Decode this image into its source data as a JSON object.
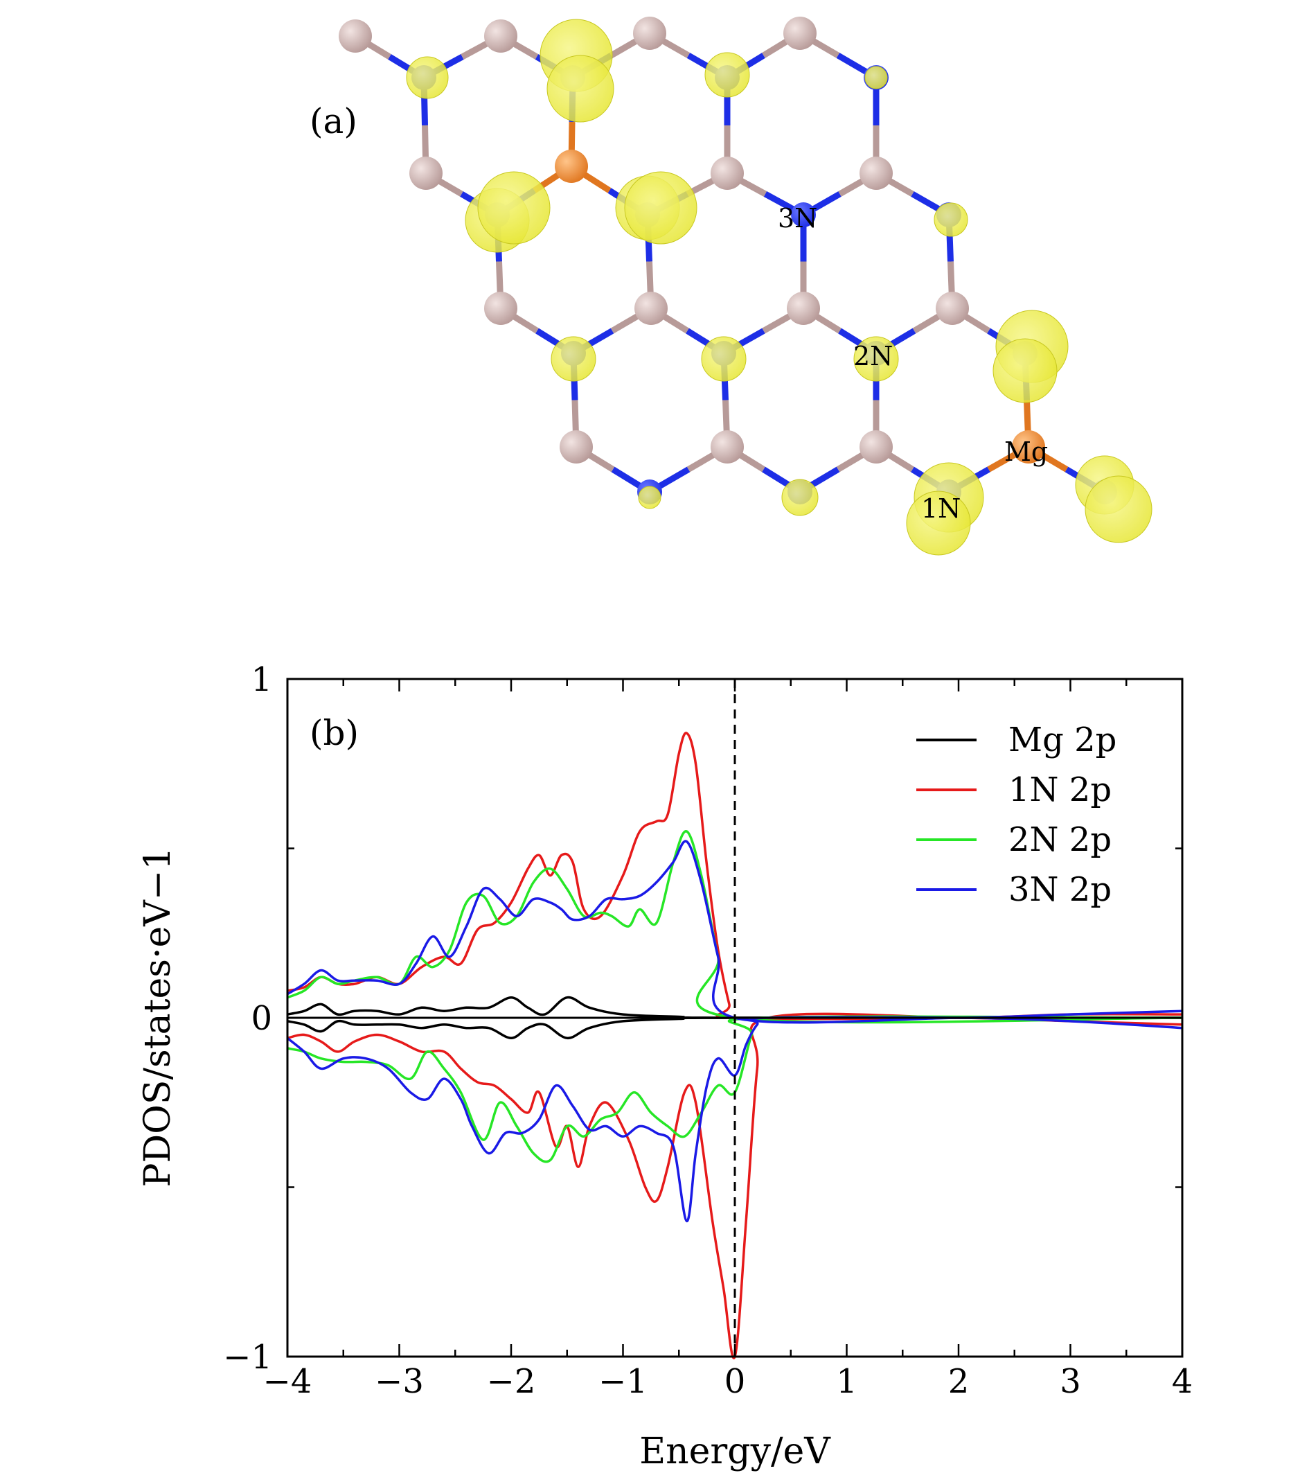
{
  "panel_a": {
    "label": "(a)",
    "atom_labels": [
      "3N",
      "2N",
      "1N",
      "Mg"
    ],
    "colors": {
      "carbon": "#b79a98",
      "nitrogen": "#1d2ee6",
      "magnesium": "#e0761f",
      "isosurface": "#e6e632"
    }
  },
  "chart_data": {
    "type": "line",
    "panel_label": "(b)",
    "title": "",
    "xlabel": "Energy/eV",
    "ylabel": "PDOS/states·eV−1",
    "xlim": [
      -4,
      4
    ],
    "ylim": [
      -1,
      1
    ],
    "xticks": [
      -4,
      -3,
      -2,
      -1,
      0,
      1,
      2,
      3,
      4
    ],
    "xtick_labels": [
      "−4",
      "−3",
      "−2",
      "−1",
      "0",
      "1",
      "2",
      "3",
      "4"
    ],
    "yticks": [
      -1,
      0,
      1
    ],
    "ytick_labels": [
      "−1",
      "0",
      "1"
    ],
    "fermi_level": 0,
    "grid": false,
    "legend_position": "top-right",
    "series": [
      {
        "name": "Mg 2p",
        "color": "#000000",
        "spin_up": [
          [
            -4,
            0.01
          ],
          [
            -3.85,
            0.02
          ],
          [
            -3.7,
            0.04
          ],
          [
            -3.55,
            0.01
          ],
          [
            -3.4,
            0.02
          ],
          [
            -3.2,
            0.02
          ],
          [
            -3.0,
            0.01
          ],
          [
            -2.8,
            0.03
          ],
          [
            -2.6,
            0.02
          ],
          [
            -2.4,
            0.03
          ],
          [
            -2.2,
            0.03
          ],
          [
            -2.0,
            0.06
          ],
          [
            -1.85,
            0.03
          ],
          [
            -1.7,
            0.01
          ],
          [
            -1.5,
            0.06
          ],
          [
            -1.3,
            0.03
          ],
          [
            -1.0,
            0.01
          ],
          [
            -0.5,
            0.003
          ],
          [
            0,
            0
          ],
          [
            4,
            0
          ]
        ],
        "spin_down": [
          [
            -4,
            -0.01
          ],
          [
            -3.85,
            -0.02
          ],
          [
            -3.7,
            -0.04
          ],
          [
            -3.55,
            -0.01
          ],
          [
            -3.4,
            -0.02
          ],
          [
            -3.2,
            -0.02
          ],
          [
            -3.0,
            -0.02
          ],
          [
            -2.8,
            -0.03
          ],
          [
            -2.6,
            -0.02
          ],
          [
            -2.4,
            -0.03
          ],
          [
            -2.2,
            -0.03
          ],
          [
            -2.0,
            -0.06
          ],
          [
            -1.85,
            -0.03
          ],
          [
            -1.7,
            -0.02
          ],
          [
            -1.5,
            -0.06
          ],
          [
            -1.3,
            -0.03
          ],
          [
            -1.0,
            -0.01
          ],
          [
            -0.5,
            -0.003
          ],
          [
            0,
            0
          ],
          [
            4,
            0
          ]
        ]
      },
      {
        "name": "1N 2p",
        "color": "#e61a1a",
        "spin_up": [
          [
            -4,
            0.08
          ],
          [
            -3.85,
            0.09
          ],
          [
            -3.7,
            0.12
          ],
          [
            -3.55,
            0.1
          ],
          [
            -3.4,
            0.1
          ],
          [
            -3.2,
            0.12
          ],
          [
            -3.0,
            0.1
          ],
          [
            -2.8,
            0.15
          ],
          [
            -2.6,
            0.18
          ],
          [
            -2.45,
            0.16
          ],
          [
            -2.3,
            0.26
          ],
          [
            -2.15,
            0.28
          ],
          [
            -2.0,
            0.34
          ],
          [
            -1.85,
            0.44
          ],
          [
            -1.75,
            0.48
          ],
          [
            -1.65,
            0.42
          ],
          [
            -1.55,
            0.48
          ],
          [
            -1.45,
            0.46
          ],
          [
            -1.35,
            0.32
          ],
          [
            -1.2,
            0.3
          ],
          [
            -1.0,
            0.42
          ],
          [
            -0.85,
            0.55
          ],
          [
            -0.7,
            0.58
          ],
          [
            -0.6,
            0.6
          ],
          [
            -0.5,
            0.78
          ],
          [
            -0.43,
            0.84
          ],
          [
            -0.35,
            0.75
          ],
          [
            -0.25,
            0.45
          ],
          [
            -0.15,
            0.2
          ],
          [
            -0.05,
            0.04
          ],
          [
            0,
            0
          ],
          [
            2,
            0
          ],
          [
            3,
            0.01
          ],
          [
            4,
            0.01
          ]
        ],
        "spin_down": [
          [
            -4,
            -0.06
          ],
          [
            -3.85,
            -0.05
          ],
          [
            -3.7,
            -0.07
          ],
          [
            -3.55,
            -0.1
          ],
          [
            -3.4,
            -0.07
          ],
          [
            -3.2,
            -0.05
          ],
          [
            -3.0,
            -0.07
          ],
          [
            -2.8,
            -0.1
          ],
          [
            -2.6,
            -0.1
          ],
          [
            -2.45,
            -0.15
          ],
          [
            -2.3,
            -0.19
          ],
          [
            -2.15,
            -0.2
          ],
          [
            -2.0,
            -0.24
          ],
          [
            -1.85,
            -0.28
          ],
          [
            -1.75,
            -0.22
          ],
          [
            -1.6,
            -0.38
          ],
          [
            -1.5,
            -0.32
          ],
          [
            -1.4,
            -0.44
          ],
          [
            -1.3,
            -0.32
          ],
          [
            -1.15,
            -0.25
          ],
          [
            -0.95,
            -0.36
          ],
          [
            -0.8,
            -0.5
          ],
          [
            -0.7,
            -0.54
          ],
          [
            -0.6,
            -0.44
          ],
          [
            -0.45,
            -0.22
          ],
          [
            -0.35,
            -0.25
          ],
          [
            -0.2,
            -0.6
          ],
          [
            -0.1,
            -0.8
          ],
          [
            0,
            -1.0
          ],
          [
            0.1,
            -0.6
          ],
          [
            0.2,
            -0.15
          ],
          [
            0.3,
            0
          ],
          [
            2,
            0
          ],
          [
            3,
            -0.01
          ],
          [
            4,
            -0.02
          ]
        ]
      },
      {
        "name": "2N 2p",
        "color": "#26e626",
        "spin_up": [
          [
            -4,
            0.06
          ],
          [
            -3.85,
            0.08
          ],
          [
            -3.7,
            0.12
          ],
          [
            -3.55,
            0.1
          ],
          [
            -3.4,
            0.11
          ],
          [
            -3.2,
            0.12
          ],
          [
            -3.0,
            0.1
          ],
          [
            -2.85,
            0.18
          ],
          [
            -2.7,
            0.15
          ],
          [
            -2.55,
            0.2
          ],
          [
            -2.4,
            0.34
          ],
          [
            -2.25,
            0.36
          ],
          [
            -2.1,
            0.28
          ],
          [
            -1.95,
            0.3
          ],
          [
            -1.8,
            0.4
          ],
          [
            -1.65,
            0.44
          ],
          [
            -1.5,
            0.38
          ],
          [
            -1.35,
            0.3
          ],
          [
            -1.2,
            0.31
          ],
          [
            -1.1,
            0.3
          ],
          [
            -0.95,
            0.27
          ],
          [
            -0.85,
            0.32
          ],
          [
            -0.7,
            0.28
          ],
          [
            -0.55,
            0.46
          ],
          [
            -0.43,
            0.55
          ],
          [
            -0.3,
            0.42
          ],
          [
            -0.15,
            0.18
          ],
          [
            0,
            0
          ],
          [
            4,
            0
          ]
        ],
        "spin_down": [
          [
            -4,
            -0.09
          ],
          [
            -3.85,
            -0.1
          ],
          [
            -3.7,
            -0.12
          ],
          [
            -3.5,
            -0.13
          ],
          [
            -3.3,
            -0.13
          ],
          [
            -3.1,
            -0.14
          ],
          [
            -2.9,
            -0.18
          ],
          [
            -2.75,
            -0.1
          ],
          [
            -2.6,
            -0.15
          ],
          [
            -2.45,
            -0.22
          ],
          [
            -2.25,
            -0.36
          ],
          [
            -2.1,
            -0.25
          ],
          [
            -1.95,
            -0.32
          ],
          [
            -1.8,
            -0.4
          ],
          [
            -1.65,
            -0.42
          ],
          [
            -1.5,
            -0.32
          ],
          [
            -1.35,
            -0.35
          ],
          [
            -1.2,
            -0.3
          ],
          [
            -1.05,
            -0.28
          ],
          [
            -0.9,
            -0.22
          ],
          [
            -0.75,
            -0.28
          ],
          [
            -0.6,
            -0.32
          ],
          [
            -0.45,
            -0.35
          ],
          [
            -0.3,
            -0.28
          ],
          [
            -0.15,
            -0.2
          ],
          [
            0,
            -0.22
          ],
          [
            0.15,
            -0.05
          ],
          [
            0.25,
            0
          ],
          [
            4,
            0
          ]
        ]
      },
      {
        "name": "3N 2p",
        "color": "#1a1ae6",
        "spin_up": [
          [
            -4,
            0.07
          ],
          [
            -3.85,
            0.1
          ],
          [
            -3.7,
            0.14
          ],
          [
            -3.55,
            0.11
          ],
          [
            -3.4,
            0.11
          ],
          [
            -3.2,
            0.11
          ],
          [
            -3.0,
            0.1
          ],
          [
            -2.85,
            0.16
          ],
          [
            -2.7,
            0.24
          ],
          [
            -2.55,
            0.18
          ],
          [
            -2.4,
            0.27
          ],
          [
            -2.25,
            0.38
          ],
          [
            -2.1,
            0.35
          ],
          [
            -1.95,
            0.3
          ],
          [
            -1.8,
            0.35
          ],
          [
            -1.65,
            0.34
          ],
          [
            -1.55,
            0.32
          ],
          [
            -1.45,
            0.29
          ],
          [
            -1.3,
            0.3
          ],
          [
            -1.15,
            0.35
          ],
          [
            -1.0,
            0.35
          ],
          [
            -0.85,
            0.36
          ],
          [
            -0.7,
            0.4
          ],
          [
            -0.55,
            0.46
          ],
          [
            -0.43,
            0.52
          ],
          [
            -0.3,
            0.4
          ],
          [
            -0.15,
            0.18
          ],
          [
            0,
            0
          ],
          [
            2,
            0
          ],
          [
            3,
            0.01
          ],
          [
            4,
            0.02
          ]
        ],
        "spin_down": [
          [
            -4,
            -0.06
          ],
          [
            -3.85,
            -0.1
          ],
          [
            -3.7,
            -0.15
          ],
          [
            -3.5,
            -0.12
          ],
          [
            -3.3,
            -0.12
          ],
          [
            -3.1,
            -0.15
          ],
          [
            -2.9,
            -0.22
          ],
          [
            -2.75,
            -0.24
          ],
          [
            -2.6,
            -0.18
          ],
          [
            -2.45,
            -0.24
          ],
          [
            -2.35,
            -0.32
          ],
          [
            -2.2,
            -0.4
          ],
          [
            -2.05,
            -0.34
          ],
          [
            -1.9,
            -0.34
          ],
          [
            -1.75,
            -0.3
          ],
          [
            -1.6,
            -0.2
          ],
          [
            -1.45,
            -0.26
          ],
          [
            -1.3,
            -0.33
          ],
          [
            -1.15,
            -0.32
          ],
          [
            -1.0,
            -0.35
          ],
          [
            -0.85,
            -0.32
          ],
          [
            -0.7,
            -0.34
          ],
          [
            -0.55,
            -0.38
          ],
          [
            -0.43,
            -0.6
          ],
          [
            -0.35,
            -0.4
          ],
          [
            -0.25,
            -0.2
          ],
          [
            -0.15,
            -0.12
          ],
          [
            0,
            -0.17
          ],
          [
            0.1,
            -0.08
          ],
          [
            0.2,
            -0.02
          ],
          [
            0.3,
            0
          ],
          [
            2,
            0
          ],
          [
            3,
            -0.01
          ],
          [
            4,
            -0.03
          ]
        ]
      }
    ]
  }
}
